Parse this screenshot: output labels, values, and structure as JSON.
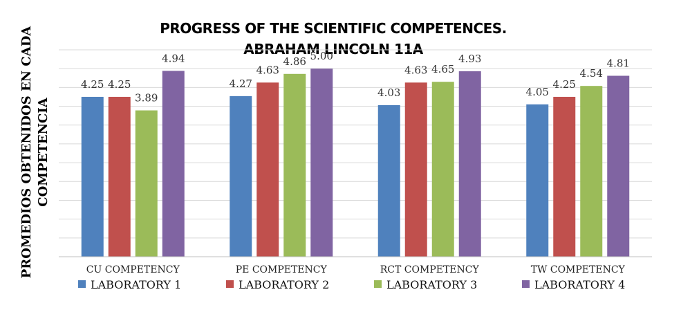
{
  "chart_data": {
    "type": "bar",
    "title_lines": [
      "PROGRESS OF THE SCIENTIFIC COMPETENCES.",
      "ABRAHAM LINCOLN 11A"
    ],
    "ylabel_lines": [
      "PROMEDIOS OBTENIDOS EN CADA",
      "COMPETENCIA"
    ],
    "xlabel": "",
    "categories": [
      "CU COMPETENCY",
      "PE COMPETENCY",
      "RCT COMPETENCY",
      "TW COMPETENCY"
    ],
    "series": [
      {
        "name": "LABORATORY 1",
        "color": "#4f81bd",
        "values": [
          4.25,
          4.27,
          4.03,
          4.05
        ],
        "labels": [
          "4.25",
          "4.27",
          "4.03",
          "4.05"
        ]
      },
      {
        "name": "LABORATORY 2",
        "color": "#c0504d",
        "values": [
          4.25,
          4.63,
          4.63,
          4.25
        ],
        "labels": [
          "4.25",
          "4.63",
          "4.63",
          "4.25"
        ]
      },
      {
        "name": "LABORATORY 3",
        "color": "#9bbb59",
        "values": [
          3.89,
          4.86,
          4.65,
          4.54
        ],
        "labels": [
          "3.89",
          "4.86",
          "4.65",
          "4.54"
        ]
      },
      {
        "name": "LABORATORY 4",
        "color": "#8064a2",
        "values": [
          4.94,
          5.0,
          4.93,
          4.81
        ],
        "labels": [
          "4.94",
          "5.00",
          "4.93",
          "4.81"
        ]
      }
    ],
    "ylim": [
      0,
      5.5
    ],
    "y_gridline_step": 0.5,
    "y_tick_labels_shown": false,
    "grid": true,
    "legend_position": "bottom"
  }
}
